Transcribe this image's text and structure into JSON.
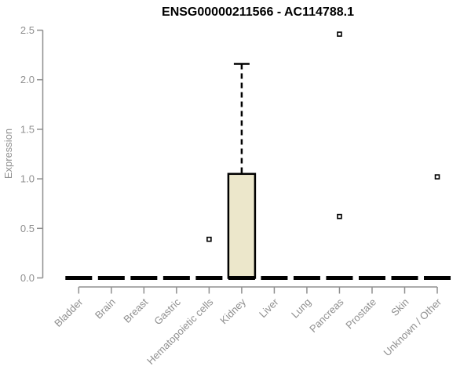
{
  "chart_data": {
    "type": "boxplot",
    "title": "ENSG00000211566 - AC114788.1",
    "ylabel": "Expression",
    "xlabel": "",
    "ylim": [
      0,
      2.5
    ],
    "ytick_labels": [
      "0.0",
      "0.5",
      "1.0",
      "1.5",
      "2.0",
      "2.5"
    ],
    "grid": "off",
    "legend": "none",
    "marker_style": "open-square",
    "categories": [
      "Bladder",
      "Brain",
      "Breast",
      "Gastric",
      "Hematopoietic cells",
      "Kidney",
      "Liver",
      "Lung",
      "Pancreas",
      "Prostate",
      "Skin",
      "Unknown / Other"
    ],
    "series": [
      {
        "category": "Bladder",
        "min": 0,
        "q1": 0,
        "median": 0,
        "q3": 0,
        "max": 0,
        "outliers": []
      },
      {
        "category": "Brain",
        "min": 0,
        "q1": 0,
        "median": 0,
        "q3": 0,
        "max": 0,
        "outliers": []
      },
      {
        "category": "Breast",
        "min": 0,
        "q1": 0,
        "median": 0,
        "q3": 0,
        "max": 0,
        "outliers": []
      },
      {
        "category": "Gastric",
        "min": 0,
        "q1": 0,
        "median": 0,
        "q3": 0,
        "max": 0,
        "outliers": []
      },
      {
        "category": "Hematopoietic cells",
        "min": 0,
        "q1": 0,
        "median": 0,
        "q3": 0,
        "max": 0,
        "outliers": [
          0.39
        ]
      },
      {
        "category": "Kidney",
        "min": 0,
        "q1": 0,
        "median": 0,
        "q3": 1.05,
        "max": 2.16,
        "outliers": []
      },
      {
        "category": "Liver",
        "min": 0,
        "q1": 0,
        "median": 0,
        "q3": 0,
        "max": 0,
        "outliers": []
      },
      {
        "category": "Lung",
        "min": 0,
        "q1": 0,
        "median": 0,
        "q3": 0,
        "max": 0,
        "outliers": []
      },
      {
        "category": "Pancreas",
        "min": 0,
        "q1": 0,
        "median": 0,
        "q3": 0,
        "max": 0,
        "outliers": [
          0.62,
          2.46
        ]
      },
      {
        "category": "Prostate",
        "min": 0,
        "q1": 0,
        "median": 0,
        "q3": 0,
        "max": 0,
        "outliers": []
      },
      {
        "category": "Skin",
        "min": 0,
        "q1": 0,
        "median": 0,
        "q3": 0,
        "max": 0,
        "outliers": []
      },
      {
        "category": "Unknown / Other",
        "min": 0,
        "q1": 0,
        "median": 0,
        "q3": 0,
        "max": 0,
        "outliers": [
          1.02
        ]
      }
    ],
    "colors": {
      "box_fill": "#ece7cb",
      "box_stroke": "#000000",
      "median": "#000000",
      "whisker": "#000000",
      "outlier_stroke": "#000000",
      "outlier_fill": "#ffffff",
      "axis": "#8f8f8f",
      "tick_text": "#8f8f8f",
      "title_text": "#000000",
      "background": "#ffffff"
    }
  }
}
